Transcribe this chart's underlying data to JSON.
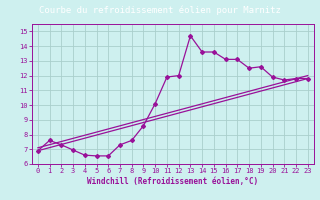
{
  "title": "Courbe du refroidissement éolien pour Marnitz",
  "xlabel": "Windchill (Refroidissement éolien,°C)",
  "xlim": [
    -0.5,
    23.5
  ],
  "ylim": [
    6,
    15.5
  ],
  "xticks": [
    0,
    1,
    2,
    3,
    4,
    5,
    6,
    7,
    8,
    9,
    10,
    11,
    12,
    13,
    14,
    15,
    16,
    17,
    18,
    19,
    20,
    21,
    22,
    23
  ],
  "yticks": [
    6,
    7,
    8,
    9,
    10,
    11,
    12,
    13,
    14,
    15
  ],
  "bg_color": "#cef0ef",
  "grid_color": "#aacfcc",
  "line_color": "#991199",
  "title_bg": "#7b4b8e",
  "title_fg": "#ffffff",
  "line1_x": [
    0,
    1,
    2,
    3,
    4,
    5,
    6,
    7,
    8,
    9,
    10,
    11,
    12,
    13,
    14,
    15,
    16,
    17,
    18,
    19,
    20,
    21,
    22,
    23
  ],
  "line1_y": [
    6.9,
    7.6,
    7.3,
    6.95,
    6.6,
    6.55,
    6.55,
    7.3,
    7.6,
    8.6,
    10.1,
    11.9,
    12.0,
    14.7,
    13.6,
    13.6,
    13.1,
    13.1,
    12.5,
    12.6,
    11.9,
    11.7,
    11.8,
    11.8
  ],
  "line2_y_start": 6.9,
  "line2_y_end": 11.8,
  "line3_y_start": 7.1,
  "line3_y_end": 12.0,
  "title_fontsize": 6.5,
  "tick_fontsize": 5,
  "xlabel_fontsize": 5.5
}
